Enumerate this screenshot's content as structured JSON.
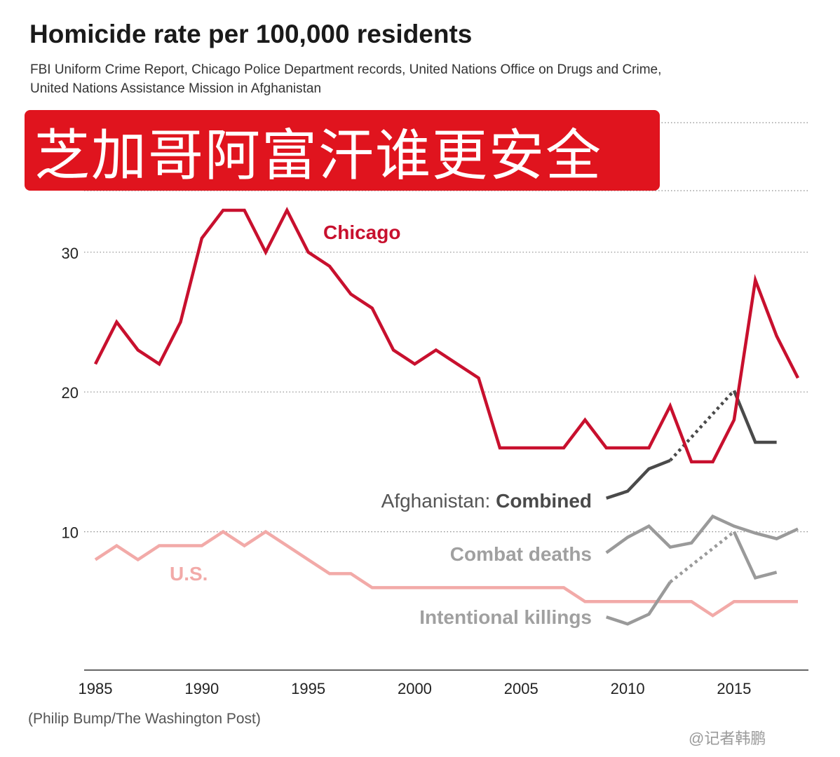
{
  "header": {
    "title": "Homicide rate per 100,000 residents",
    "subtitle_line1": "FBI Uniform Crime Report, Chicago Police Department records, United Nations Office on Drugs and Crime,",
    "subtitle_line2": "United Nations Assistance Mission in Afghanistan"
  },
  "banner": {
    "text": "芝加哥阿富汗谁更安全",
    "color": "#e0141e"
  },
  "footer": {
    "credit": "(Philip Bump/The Washington Post)",
    "watermark": "@记者韩鹏"
  },
  "chart_data": {
    "type": "line",
    "title": "Homicide rate per 100,000 residents",
    "xlabel": "",
    "ylabel": "",
    "xlim": [
      1985,
      2018
    ],
    "ylim": [
      0,
      33
    ],
    "x_ticks": [
      1985,
      1990,
      1995,
      2000,
      2005,
      2010,
      2015
    ],
    "y_ticks": [
      10,
      20,
      30
    ],
    "grid": "horizontal dotted",
    "series": [
      {
        "name": "Chicago",
        "label": "Chicago",
        "color": "#c8102e",
        "x": [
          1985,
          1986,
          1987,
          1988,
          1989,
          1990,
          1991,
          1992,
          1993,
          1994,
          1995,
          1996,
          1997,
          1998,
          1999,
          2000,
          2001,
          2002,
          2003,
          2004,
          2005,
          2006,
          2007,
          2008,
          2009,
          2010,
          2011,
          2012,
          2013,
          2014,
          2015,
          2016,
          2017,
          2018
        ],
        "values": [
          22,
          25,
          23,
          22,
          25,
          31,
          33,
          33,
          30,
          33,
          30,
          29,
          27,
          26,
          23,
          22,
          23,
          22,
          21,
          16,
          16,
          16,
          16,
          18,
          16,
          16,
          16,
          19,
          15,
          15,
          18,
          28,
          24,
          21
        ]
      },
      {
        "name": "U.S.",
        "label": "U.S.",
        "color": "#f2aaa8",
        "x": [
          1985,
          1986,
          1987,
          1988,
          1989,
          1990,
          1991,
          1992,
          1993,
          1994,
          1995,
          1996,
          1997,
          1998,
          1999,
          2000,
          2001,
          2002,
          2003,
          2004,
          2005,
          2006,
          2007,
          2008,
          2009,
          2010,
          2011,
          2012,
          2013,
          2014,
          2015,
          2016,
          2017,
          2018
        ],
        "values": [
          8,
          9,
          8,
          9,
          9,
          9,
          10,
          9,
          10,
          9,
          8,
          7,
          7,
          6,
          6,
          6,
          6,
          6,
          6,
          6,
          6,
          6,
          6,
          5,
          5,
          5,
          5,
          5,
          5,
          4,
          5,
          5,
          5,
          5
        ]
      },
      {
        "name": "Afghanistan: Combined",
        "label_prefix": "Afghanistan: ",
        "label_bold": "Combined",
        "color": "#4a4a4a",
        "x": [
          2009,
          2010,
          2011,
          2012,
          2015,
          2016,
          2017
        ],
        "values": [
          12.4,
          12.9,
          14.5,
          15.1,
          20.1,
          16.4,
          16.4
        ],
        "dotted_between": [
          2012,
          2015
        ]
      },
      {
        "name": "Combat deaths",
        "label": "Combat deaths",
        "color": "#9a9a9a",
        "x": [
          2009,
          2010,
          2011,
          2012,
          2013,
          2014,
          2015,
          2016,
          2017,
          2018
        ],
        "values": [
          8.5,
          9.6,
          10.4,
          8.9,
          9.2,
          11.1,
          10.4,
          9.9,
          9.5,
          10.2
        ]
      },
      {
        "name": "Intentional killings",
        "label": "Intentional killings",
        "color": "#9a9a9a",
        "x": [
          2009,
          2010,
          2011,
          2012,
          2015,
          2016,
          2017
        ],
        "values": [
          3.9,
          3.4,
          4.1,
          6.4,
          10.0,
          6.7,
          7.1
        ],
        "dotted_between": [
          2012,
          2015
        ]
      }
    ]
  }
}
